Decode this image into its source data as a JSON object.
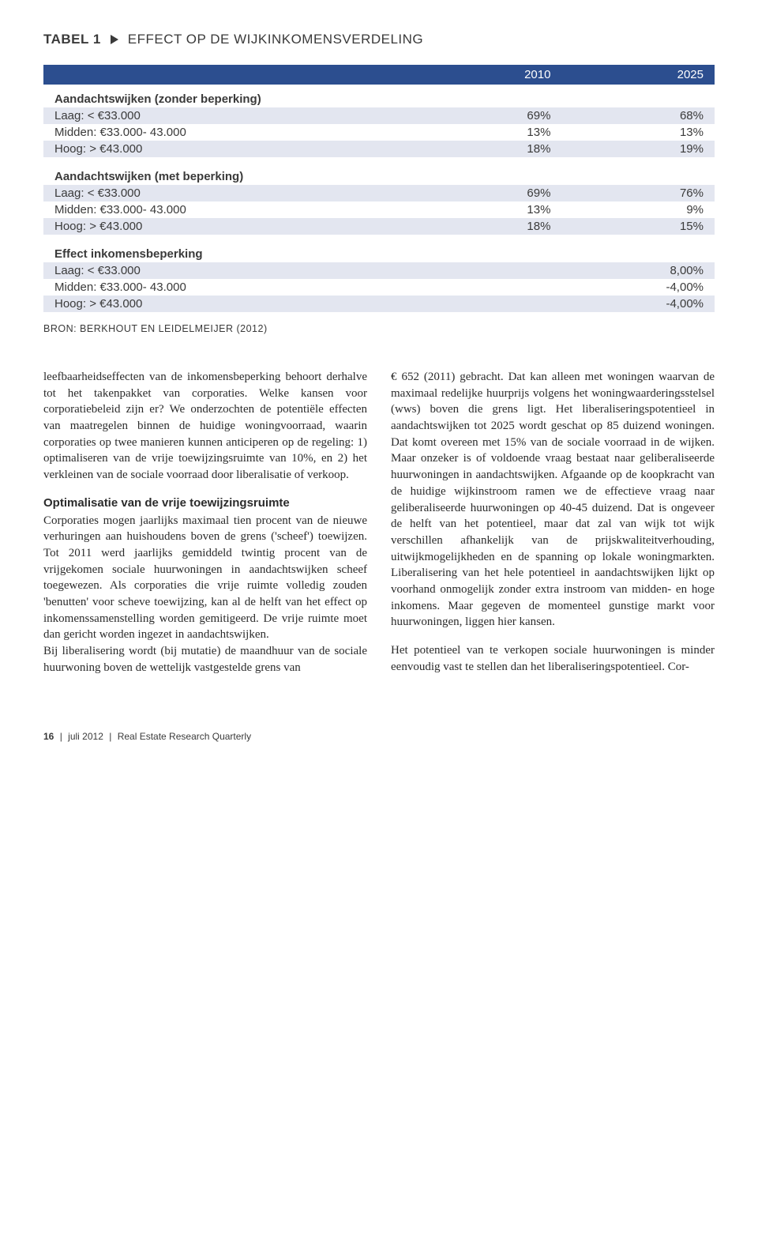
{
  "table": {
    "label": "TABEL 1",
    "title": "EFFECT OP DE WIJKINKOMENSVERDELING",
    "header_bg": "#2c4e8f",
    "header_color": "#ffffff",
    "stripe_color": "#e3e6f0",
    "columns": [
      "",
      "2010",
      "2025"
    ],
    "sections": [
      {
        "title": "Aandachtswijken (zonder beperking)",
        "rows": [
          {
            "label": "Laag: < €33.000",
            "c1": "69%",
            "c2": "68%"
          },
          {
            "label": "Midden: €33.000- 43.000",
            "c1": "13%",
            "c2": "13%"
          },
          {
            "label": "Hoog: > €43.000",
            "c1": "18%",
            "c2": "19%"
          }
        ]
      },
      {
        "title": "Aandachtswijken (met beperking)",
        "rows": [
          {
            "label": "Laag: < €33.000",
            "c1": "69%",
            "c2": "76%"
          },
          {
            "label": "Midden: €33.000- 43.000",
            "c1": "13%",
            "c2": "9%"
          },
          {
            "label": "Hoog: > €43.000",
            "c1": "18%",
            "c2": "15%"
          }
        ]
      },
      {
        "title": "Effect inkomensbeperking",
        "rows": [
          {
            "label": "Laag: < €33.000",
            "c1": "",
            "c2": "8,00%"
          },
          {
            "label": "Midden: €33.000- 43.000",
            "c1": "",
            "c2": "-4,00%"
          },
          {
            "label": "Hoog: > €43.000",
            "c1": "",
            "c2": "-4,00%"
          }
        ]
      }
    ],
    "source": "BRON: BERKHOUT EN LEIDELMEIJER (2012)"
  },
  "body": {
    "left": {
      "p1": "leefbaarheidseffecten van de inkomensbeperking behoort derhalve tot het takenpakket van corporaties. Welke kansen voor corporatiebeleid zijn er? We onderzochten de potentiële effecten van maatregelen binnen de huidige woningvoorraad, waarin corporaties op twee manieren kunnen anticiperen op de regeling: 1) optimaliseren van de vrije toewijzingsruimte van 10%, en 2) het verkleinen van de sociale voorraad door liberalisatie of verkoop.",
      "subhead": "Optimalisatie van de vrije toewijzingsruimte",
      "p2": "Corporaties mogen jaarlijks maximaal tien procent van de nieuwe verhuringen aan huishoudens boven de grens ('scheef') toewijzen. Tot 2011 werd jaarlijks gemiddeld twintig procent van de vrijgekomen sociale huurwoningen in aandachtswijken scheef toegewezen. Als corporaties die vrije ruimte volledig zouden 'benutten' voor scheve toewijzing, kan al de helft van het effect op inkomenssamenstelling worden gemitigeerd. De vrije ruimte moet dan gericht worden ingezet in aandachtswijken.",
      "p3": "Bij liberalisering wordt (bij mutatie) de maandhuur van de sociale huurwoning boven de wettelijk vastgestelde grens van"
    },
    "right": {
      "p1": "€ 652 (2011) gebracht. Dat kan alleen met woningen waarvan de maximaal redelijke huurprijs volgens het woningwaarderingsstelsel (wws) boven die grens ligt. Het liberaliseringspotentieel in aandachtswijken tot 2025 wordt geschat op 85 duizend woningen. Dat komt overeen met 15% van de sociale voorraad in de wijken. Maar onzeker is of voldoende vraag bestaat naar geliberaliseerde huurwoningen in aandachtswijken. Afgaande op de koopkracht van de huidige wijkinstroom ramen we de effectieve vraag naar geliberaliseerde huurwoningen op 40-45 duizend. Dat is ongeveer de helft van het potentieel, maar dat zal van wijk tot wijk verschillen afhankelijk van de prijskwaliteitverhouding, uitwijkmogelijkheden en de spanning op lokale woningmarkten. Liberalisering van het hele potentieel in aandachtswijken lijkt op voorhand onmogelijk zonder extra instroom van midden- en hoge inkomens. Maar gegeven de momenteel gunstige markt voor huurwoningen, liggen hier kansen.",
      "p2": "Het potentieel van te verkopen sociale huurwoningen is minder eenvoudig vast te stellen dan het liberaliseringspotentieel. Cor-"
    }
  },
  "footer": {
    "page": "16",
    "sep": "|",
    "date": "juli 2012",
    "journal": "Real Estate Research Quarterly"
  }
}
